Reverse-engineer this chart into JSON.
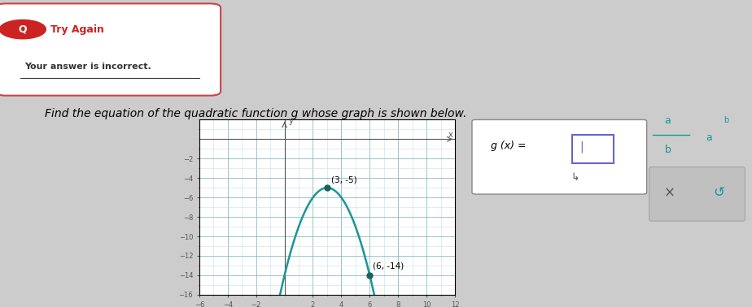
{
  "bg_color": "#cccccc",
  "try_again_text": "Try Again",
  "try_again_color": "#cc2222",
  "incorrect_text": "Your answer is incorrect.",
  "question_text": "Find the equation of the quadratic function g whose graph is shown below.",
  "vertex": [
    3,
    -5
  ],
  "extra_point": [
    6,
    -14
  ],
  "x_min": -6,
  "x_max": 12,
  "y_min": -16,
  "y_max": 2,
  "curve_color": "#1a9696",
  "point_color": "#1a6060",
  "x_ticks": [
    -6,
    -4,
    -2,
    2,
    4,
    6,
    8,
    10,
    12
  ],
  "y_ticks": [
    -2,
    -4,
    -6,
    -8,
    -10,
    -12,
    -14,
    -16
  ]
}
